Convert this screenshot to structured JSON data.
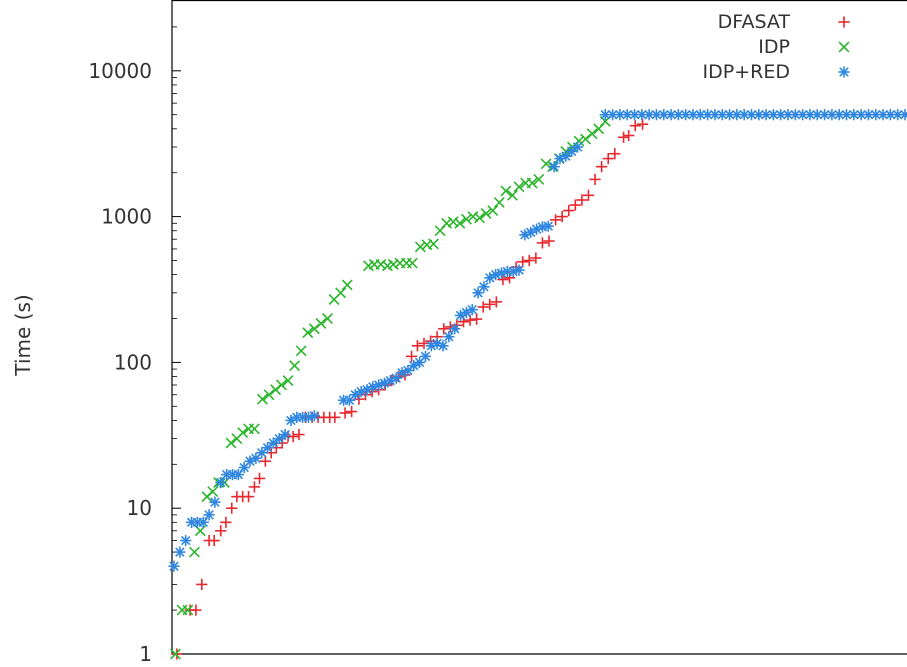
{
  "chart_data": {
    "type": "scatter",
    "title": "",
    "xlabel": "",
    "ylabel": "Time (s)",
    "y_scale": "log",
    "ylim": [
      1,
      30000
    ],
    "xlim": [
      0,
      100
    ],
    "y_ticks": [
      {
        "value": 1,
        "label": "1"
      },
      {
        "value": 10,
        "label": "10"
      },
      {
        "value": 100,
        "label": "100"
      },
      {
        "value": 1000,
        "label": "1000"
      },
      {
        "value": 10000,
        "label": "10000"
      }
    ],
    "grid": false,
    "legend": "top-right",
    "series": [
      {
        "name": "DFASAT",
        "marker": "plus",
        "color": "#e8282e",
        "points": [
          [
            0.4,
            1
          ],
          [
            2.2,
            2
          ],
          [
            3.0,
            2
          ],
          [
            3.8,
            3
          ],
          [
            4.8,
            6
          ],
          [
            5.5,
            6
          ],
          [
            6.4,
            7
          ],
          [
            7.1,
            8
          ],
          [
            7.9,
            10
          ],
          [
            8.6,
            12
          ],
          [
            9.4,
            12
          ],
          [
            10.2,
            12
          ],
          [
            11.0,
            14
          ],
          [
            11.7,
            16
          ],
          [
            12.5,
            21
          ],
          [
            13.3,
            24
          ],
          [
            14.0,
            26
          ],
          [
            14.8,
            28
          ],
          [
            15.6,
            31
          ],
          [
            16.3,
            31
          ],
          [
            17.1,
            32
          ],
          [
            18.0,
            42
          ],
          [
            18.9,
            42
          ],
          [
            19.7,
            42
          ],
          [
            20.5,
            42
          ],
          [
            21.3,
            42
          ],
          [
            22.0,
            42
          ],
          [
            23.4,
            45
          ],
          [
            24.3,
            46
          ],
          [
            25.3,
            56
          ],
          [
            26.2,
            60
          ],
          [
            27.1,
            63
          ],
          [
            28.0,
            65
          ],
          [
            28.9,
            70
          ],
          [
            29.8,
            75
          ],
          [
            30.7,
            80
          ],
          [
            31.6,
            82
          ],
          [
            32.5,
            110
          ],
          [
            33.3,
            130
          ],
          [
            34.2,
            135
          ],
          [
            35.1,
            140
          ],
          [
            36.0,
            150
          ],
          [
            36.9,
            170
          ],
          [
            37.8,
            175
          ],
          [
            38.7,
            180
          ],
          [
            39.6,
            190
          ],
          [
            40.5,
            195
          ],
          [
            41.4,
            198
          ],
          [
            42.3,
            240
          ],
          [
            43.2,
            250
          ],
          [
            44.1,
            260
          ],
          [
            45.0,
            370
          ],
          [
            45.9,
            380
          ],
          [
            46.8,
            450
          ],
          [
            47.7,
            490
          ],
          [
            48.6,
            500
          ],
          [
            49.5,
            520
          ],
          [
            50.4,
            660
          ],
          [
            51.3,
            680
          ],
          [
            52.2,
            950
          ],
          [
            53.1,
            1000
          ],
          [
            54.0,
            1100
          ],
          [
            54.9,
            1200
          ],
          [
            55.8,
            1300
          ],
          [
            56.7,
            1400
          ],
          [
            57.6,
            1800
          ],
          [
            58.5,
            2200
          ],
          [
            59.4,
            2500
          ],
          [
            60.3,
            2700
          ],
          [
            61.5,
            3500
          ],
          [
            62.2,
            3600
          ],
          [
            63.1,
            4200
          ],
          [
            64.1,
            4300
          ]
        ]
      },
      {
        "name": "IDP",
        "marker": "x",
        "color": "#2bb52b",
        "points": [
          [
            0.2,
            1
          ],
          [
            1.1,
            2
          ],
          [
            1.9,
            2
          ],
          [
            2.8,
            5
          ],
          [
            3.6,
            7
          ],
          [
            4.5,
            12
          ],
          [
            5.3,
            13
          ],
          [
            6.1,
            15
          ],
          [
            6.9,
            15
          ],
          [
            7.8,
            28
          ],
          [
            8.6,
            30
          ],
          [
            9.4,
            33
          ],
          [
            10.2,
            35
          ],
          [
            11.0,
            35
          ],
          [
            12.1,
            56
          ],
          [
            13.0,
            60
          ],
          [
            13.9,
            65
          ],
          [
            14.7,
            70
          ],
          [
            15.6,
            75
          ],
          [
            16.5,
            95
          ],
          [
            17.4,
            120
          ],
          [
            18.3,
            160
          ],
          [
            19.2,
            170
          ],
          [
            20.1,
            185
          ],
          [
            21.0,
            200
          ],
          [
            21.9,
            270
          ],
          [
            22.8,
            300
          ],
          [
            23.7,
            340
          ],
          [
            26.6,
            460
          ],
          [
            27.4,
            470
          ],
          [
            28.3,
            470
          ],
          [
            29.2,
            460
          ],
          [
            30.0,
            470
          ],
          [
            30.9,
            480
          ],
          [
            31.8,
            480
          ],
          [
            32.6,
            480
          ],
          [
            33.7,
            620
          ],
          [
            34.6,
            640
          ],
          [
            35.5,
            650
          ],
          [
            36.4,
            800
          ],
          [
            37.3,
            900
          ],
          [
            38.2,
            920
          ],
          [
            39.1,
            900
          ],
          [
            40.0,
            960
          ],
          [
            40.9,
            1000
          ],
          [
            41.8,
            980
          ],
          [
            42.7,
            1050
          ],
          [
            43.6,
            1100
          ],
          [
            44.5,
            1250
          ],
          [
            45.4,
            1500
          ],
          [
            46.3,
            1400
          ],
          [
            47.2,
            1600
          ],
          [
            48.1,
            1700
          ],
          [
            49.0,
            1700
          ],
          [
            49.9,
            1800
          ],
          [
            50.9,
            2300
          ],
          [
            51.8,
            2200
          ],
          [
            52.7,
            2500
          ],
          [
            53.6,
            2800
          ],
          [
            54.5,
            3000
          ],
          [
            55.4,
            3300
          ],
          [
            56.3,
            3400
          ],
          [
            57.2,
            3700
          ],
          [
            58.1,
            4000
          ],
          [
            59.0,
            4500
          ]
        ]
      },
      {
        "name": "IDP+RED",
        "marker": "star",
        "color": "#2f87e0",
        "points": [
          [
            0,
            4
          ],
          [
            0.8,
            5
          ],
          [
            1.6,
            6
          ],
          [
            2.4,
            8
          ],
          [
            3.2,
            8
          ],
          [
            4.0,
            8
          ],
          [
            4.8,
            9
          ],
          [
            5.6,
            11
          ],
          [
            6.4,
            15
          ],
          [
            7.2,
            17
          ],
          [
            8.0,
            17
          ],
          [
            8.8,
            17
          ],
          [
            9.6,
            19
          ],
          [
            10.4,
            21
          ],
          [
            11.2,
            22
          ],
          [
            12.0,
            24
          ],
          [
            12.8,
            26
          ],
          [
            13.6,
            28
          ],
          [
            14.4,
            30
          ],
          [
            15.2,
            32
          ],
          [
            16.0,
            40
          ],
          [
            16.8,
            42
          ],
          [
            17.6,
            42
          ],
          [
            18.4,
            42
          ],
          [
            19.2,
            43
          ],
          [
            23.2,
            55
          ],
          [
            24.0,
            55
          ],
          [
            24.8,
            60
          ],
          [
            25.6,
            63
          ],
          [
            26.4,
            65
          ],
          [
            27.2,
            68
          ],
          [
            28.0,
            70
          ],
          [
            28.8,
            72
          ],
          [
            29.6,
            75
          ],
          [
            30.4,
            78
          ],
          [
            31.2,
            85
          ],
          [
            32.0,
            88
          ],
          [
            32.8,
            95
          ],
          [
            33.6,
            100
          ],
          [
            34.4,
            110
          ],
          [
            35.2,
            130
          ],
          [
            36.0,
            135
          ],
          [
            36.8,
            130
          ],
          [
            37.6,
            150
          ],
          [
            38.4,
            170
          ],
          [
            39.2,
            210
          ],
          [
            40.0,
            220
          ],
          [
            40.8,
            230
          ],
          [
            41.6,
            300
          ],
          [
            42.4,
            330
          ],
          [
            43.2,
            380
          ],
          [
            44.0,
            400
          ],
          [
            44.8,
            410
          ],
          [
            45.6,
            420
          ],
          [
            46.4,
            420
          ],
          [
            47.2,
            430
          ],
          [
            48.0,
            750
          ],
          [
            48.8,
            780
          ],
          [
            49.6,
            820
          ],
          [
            50.4,
            850
          ],
          [
            51.2,
            860
          ],
          [
            52.0,
            2200
          ],
          [
            52.8,
            2500
          ],
          [
            53.6,
            2600
          ],
          [
            54.4,
            2800
          ],
          [
            55.2,
            3000
          ],
          [
            59.0,
            5000
          ],
          [
            60.0,
            5000
          ],
          [
            61.0,
            5000
          ],
          [
            62.0,
            5000
          ],
          [
            63.0,
            5000
          ],
          [
            64.0,
            5000
          ],
          [
            65.0,
            5000
          ],
          [
            66.0,
            5000
          ],
          [
            67.0,
            5000
          ],
          [
            68.0,
            5000
          ],
          [
            69.0,
            5000
          ],
          [
            70.0,
            5000
          ],
          [
            71.0,
            5000
          ],
          [
            72.0,
            5000
          ],
          [
            73.0,
            5000
          ],
          [
            74.0,
            5000
          ],
          [
            75.0,
            5000
          ],
          [
            76.0,
            5000
          ],
          [
            77.0,
            5000
          ],
          [
            78.0,
            5000
          ],
          [
            79.0,
            5000
          ],
          [
            80.0,
            5000
          ],
          [
            81.0,
            5000
          ],
          [
            82.0,
            5000
          ],
          [
            83.0,
            5000
          ],
          [
            84.0,
            5000
          ],
          [
            85.0,
            5000
          ],
          [
            86.0,
            5000
          ],
          [
            87.0,
            5000
          ],
          [
            88.0,
            5000
          ],
          [
            89.0,
            5000
          ],
          [
            90.0,
            5000
          ],
          [
            91.0,
            5000
          ],
          [
            92.0,
            5000
          ],
          [
            93.0,
            5000
          ],
          [
            94.0,
            5000
          ],
          [
            95.0,
            5000
          ],
          [
            96.0,
            5000
          ],
          [
            97.0,
            5000
          ],
          [
            98.0,
            5000
          ],
          [
            99.0,
            5000
          ],
          [
            100.0,
            5000
          ]
        ]
      }
    ]
  }
}
